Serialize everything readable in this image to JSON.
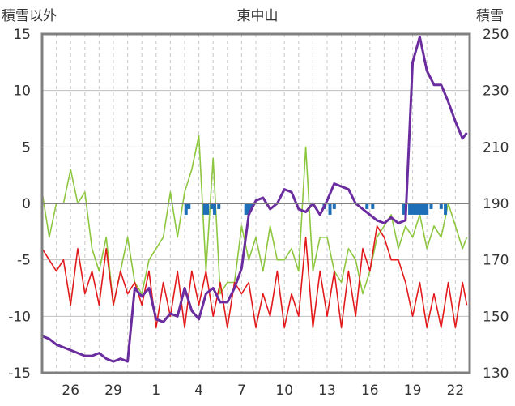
{
  "chart_data": {
    "type": "line",
    "title": "東中山",
    "ylabel_left": "積雪以外",
    "ylabel_right": "積雪",
    "y_left_range": [
      -15,
      15
    ],
    "y_left_ticks": [
      "15",
      "10",
      "5",
      "0",
      "-5",
      "-10",
      "-15"
    ],
    "y_right_range": [
      130,
      250
    ],
    "y_right_ticks": [
      "250",
      "230",
      "210",
      "190",
      "170",
      "150",
      "130"
    ],
    "x_range_days": [
      0,
      30
    ],
    "x_ticks": [
      {
        "day": 2,
        "label": "26"
      },
      {
        "day": 5,
        "label": "29"
      },
      {
        "day": 8,
        "label": "1"
      },
      {
        "day": 11,
        "label": "4"
      },
      {
        "day": 14,
        "label": "7"
      },
      {
        "day": 17,
        "label": "10"
      },
      {
        "day": 20,
        "label": "13"
      },
      {
        "day": 23,
        "label": "16"
      },
      {
        "day": 26,
        "label": "19"
      },
      {
        "day": 29,
        "label": "22"
      }
    ],
    "grid": true,
    "colors": {
      "temperature": "#e31a1c",
      "wind": "#8dc63f",
      "precipitation": "#1f6fb8",
      "snow_depth": "#6a2c9e",
      "axis": "#808080",
      "grid": "#bfbfbf"
    },
    "snow_depth": {
      "axis": "right",
      "x": [
        0,
        0.5,
        1,
        1.5,
        2,
        2.5,
        3,
        3.5,
        4,
        4.5,
        5,
        5.5,
        6,
        6.5,
        7,
        7.5,
        8,
        8.5,
        9,
        9.5,
        10,
        10.5,
        11,
        11.5,
        12,
        12.5,
        13,
        13.5,
        14,
        14.5,
        15,
        15.5,
        16,
        16.5,
        17,
        17.5,
        18,
        18.5,
        19,
        19.5,
        20,
        20.5,
        21,
        21.5,
        22,
        22.5,
        23,
        23.5,
        24,
        24.5,
        25,
        25.5,
        26,
        26.5,
        27,
        27.5,
        28,
        28.5,
        29,
        29.5,
        29.8
      ],
      "y": [
        143,
        142,
        140,
        139,
        138,
        137,
        136,
        136,
        137,
        135,
        134,
        135,
        134,
        160,
        157,
        160,
        149,
        148,
        151,
        150,
        160,
        152,
        149,
        158,
        160,
        155,
        155,
        160,
        167,
        186,
        191,
        192,
        188,
        190,
        195,
        194,
        188,
        187,
        190,
        186,
        191,
        197,
        196,
        195,
        190,
        188,
        186,
        184,
        183,
        185,
        183,
        184,
        240,
        249,
        237,
        232,
        232,
        226,
        219,
        213,
        215
      ]
    },
    "temperature": {
      "axis": "left",
      "x": [
        0,
        0.5,
        1,
        1.5,
        2,
        2.5,
        3,
        3.5,
        4,
        4.5,
        5,
        5.5,
        6,
        6.5,
        7,
        7.5,
        8,
        8.5,
        9,
        9.5,
        10,
        10.5,
        11,
        11.5,
        12,
        12.5,
        13,
        13.5,
        14,
        14.5,
        15,
        15.5,
        16,
        16.5,
        17,
        17.5,
        18,
        18.5,
        19,
        19.5,
        20,
        20.5,
        21,
        21.5,
        22,
        22.5,
        23,
        23.5,
        24,
        24.5,
        25,
        25.5,
        26,
        26.5,
        27,
        27.5,
        28,
        28.5,
        29,
        29.5,
        29.8
      ],
      "y": [
        -4,
        -5,
        -6,
        -5,
        -9,
        -4,
        -8,
        -6,
        -9,
        -4,
        -9,
        -6,
        -8,
        -7,
        -9,
        -6,
        -11,
        -7,
        -10,
        -6,
        -11,
        -6,
        -9,
        -6,
        -10,
        -7,
        -11,
        -7,
        -8,
        -7,
        -11,
        -8,
        -10,
        -6,
        -11,
        -8,
        -10,
        -3,
        -11,
        -6,
        -10,
        -6,
        -11,
        -6,
        -10,
        -4,
        -6,
        -2,
        -3,
        -5,
        -5,
        -7,
        -10,
        -7,
        -11,
        -8,
        -11,
        -7,
        -11,
        -7,
        -9
      ]
    },
    "wind": {
      "axis": "left",
      "x": [
        0,
        0.5,
        1,
        1.5,
        2,
        2.5,
        3,
        3.5,
        4,
        4.5,
        5,
        5.5,
        6,
        6.5,
        7,
        7.5,
        8,
        8.5,
        9,
        9.5,
        10,
        10.5,
        11,
        11.5,
        12,
        12.5,
        13,
        13.5,
        14,
        14.5,
        15,
        15.5,
        16,
        16.5,
        17,
        17.5,
        18,
        18.5,
        19,
        19.5,
        20,
        20.5,
        21,
        21.5,
        22,
        22.5,
        23,
        23.5,
        24,
        24.5,
        25,
        25.5,
        26,
        26.5,
        27,
        27.5,
        28,
        28.5,
        29,
        29.5,
        29.8
      ],
      "y": [
        1,
        -3,
        0,
        0,
        3,
        0,
        1,
        -4,
        -6,
        -3,
        -9,
        -6,
        -3,
        -7,
        -8,
        -5,
        -4,
        -3,
        1,
        -3,
        1,
        3,
        6,
        -6,
        4,
        -8,
        -7,
        -7,
        -2,
        -5,
        -3,
        -6,
        -2,
        -5,
        -5,
        -4,
        -6,
        5,
        -6,
        -3,
        -3,
        -6,
        -7,
        -4,
        -5,
        -8,
        -6,
        -3,
        -2,
        -1,
        -4,
        -2,
        -3,
        -1,
        -4,
        -2,
        -3,
        0,
        -2,
        -4,
        -3
      ]
    },
    "precipitation_bars": {
      "axis": "left",
      "x": [
        10.1,
        10.3,
        11.4,
        11.6,
        11.9,
        12.1,
        12.4,
        14.3,
        14.5,
        14.7,
        19.8,
        20.2,
        20.5,
        22.8,
        23.2,
        25.4,
        25.8,
        26.0,
        26.2,
        26.4,
        26.6,
        26.8,
        27.0,
        27.3,
        28.0,
        28.3
      ],
      "y": [
        -1,
        -0.5,
        -1,
        -1,
        -0.5,
        -1,
        -0.5,
        -1,
        -1,
        -0.5,
        -0.5,
        -1,
        -0.5,
        -0.5,
        -0.5,
        -1,
        -1,
        -1,
        -1,
        -1,
        -1,
        -1,
        -1,
        -0.5,
        -0.5,
        -1
      ]
    }
  }
}
